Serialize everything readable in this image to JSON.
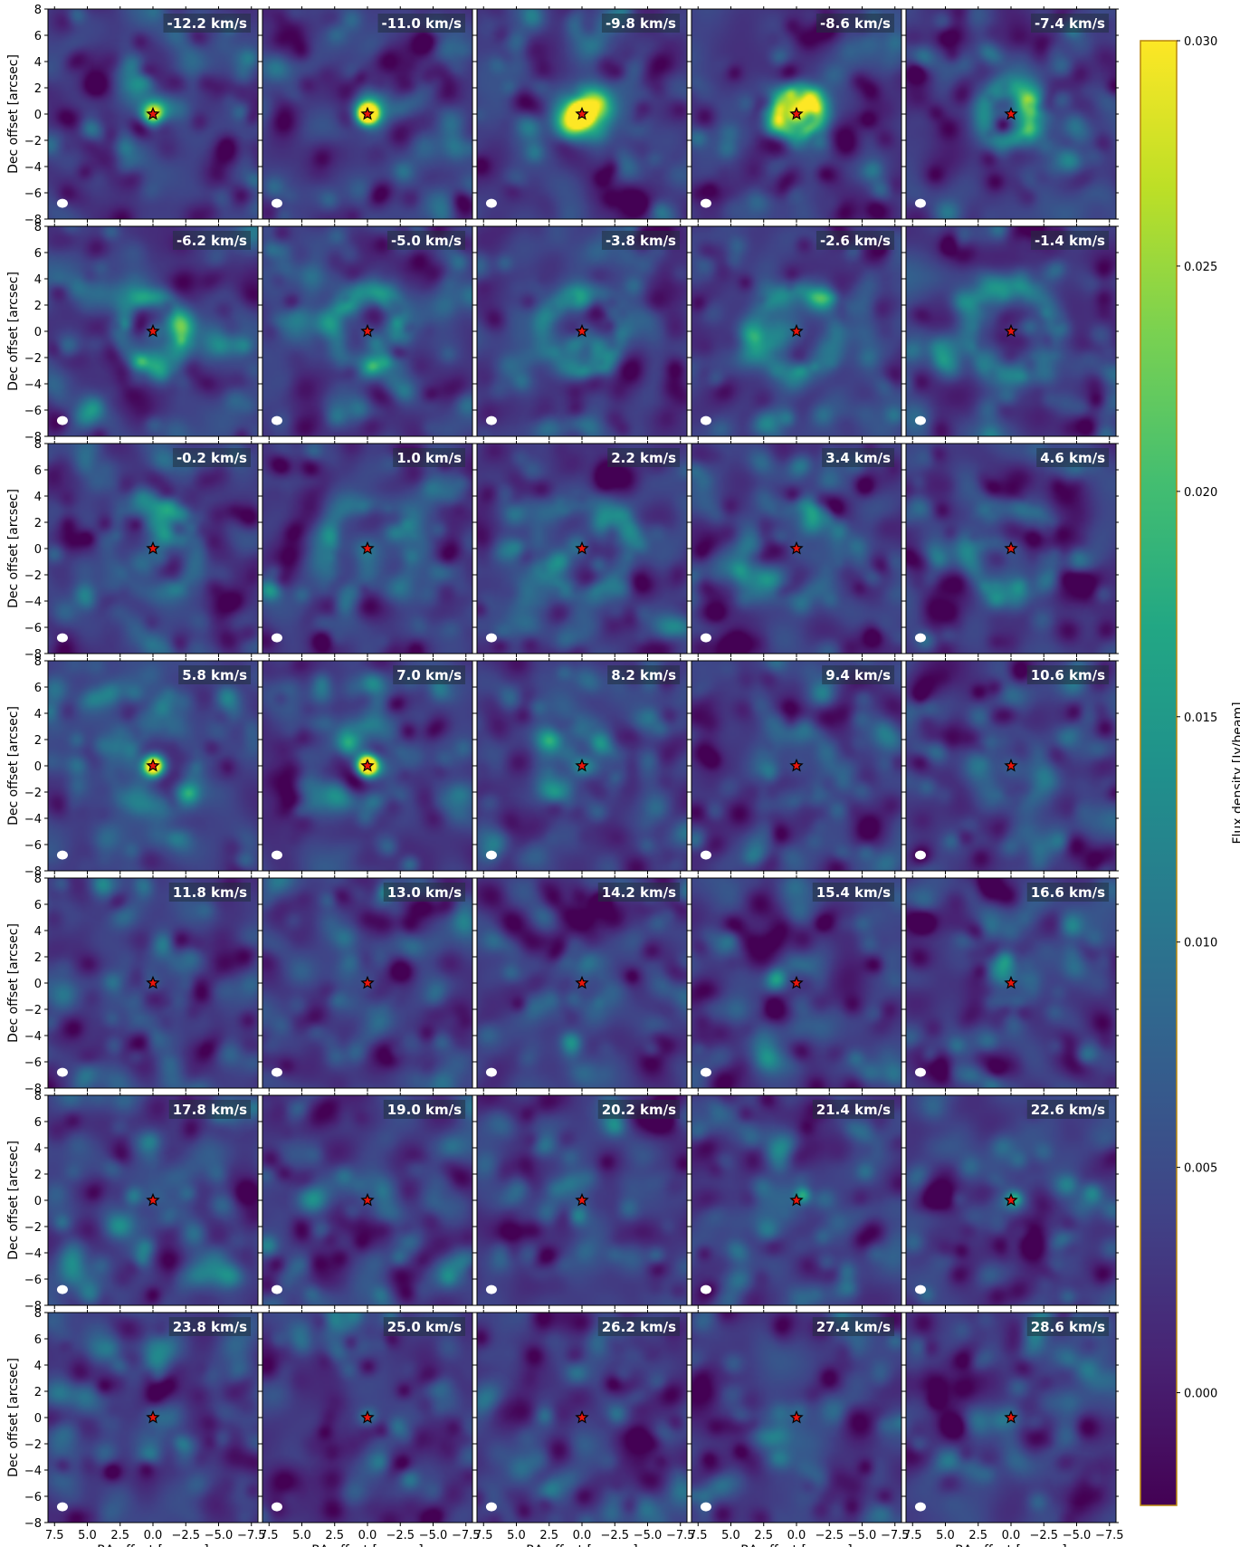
{
  "chart_data": {
    "type": "heatmap",
    "title": "",
    "layout": "channel-map grid",
    "rows": 7,
    "cols": 5,
    "xlabel": "RA offset [arcsec]",
    "ylabel": "Dec offset [arcsec]",
    "xlim": [
      8,
      -8
    ],
    "ylim": [
      -8,
      8
    ],
    "x_ticks": [
      "7.5",
      "5.0",
      "2.5",
      "0.0",
      "−2.5",
      "−5.0",
      "−7.5"
    ],
    "x_tick_values": [
      7.5,
      5.0,
      2.5,
      0.0,
      -2.5,
      -5.0,
      -7.5
    ],
    "y_ticks": [
      "8",
      "6",
      "4",
      "2",
      "0",
      "−2",
      "−4",
      "−6",
      "−8"
    ],
    "y_tick_values": [
      8,
      6,
      4,
      2,
      0,
      -2,
      -4,
      -6,
      -8
    ],
    "channels": [
      {
        "label": "-12.2 km/s",
        "velocity": -12.2,
        "peak": 0.016,
        "ring": 0.0,
        "ring_radius": 2.0,
        "blobs": [
          [
            0.0,
            0.0,
            0.8,
            0.012
          ]
        ]
      },
      {
        "label": "-11.0 km/s",
        "velocity": -11.0,
        "peak": 0.045,
        "ring": 0.002,
        "ring_radius": 1.2,
        "blobs": [
          [
            -0.4,
            0.4,
            1.0,
            0.01
          ]
        ]
      },
      {
        "label": "-9.8 km/s",
        "velocity": -9.8,
        "peak": 0.045,
        "ring": 0.006,
        "ring_radius": 1.4,
        "blobs": [
          [
            -1.0,
            0.6,
            1.0,
            0.02
          ],
          [
            0.8,
            -0.8,
            0.9,
            0.016
          ]
        ]
      },
      {
        "label": "-8.6 km/s",
        "velocity": -8.6,
        "peak": 0.022,
        "ring": 0.02,
        "ring_radius": 1.5,
        "blobs": [
          [
            -1.2,
            0.6,
            0.8,
            0.01
          ]
        ]
      },
      {
        "label": "-7.4 km/s",
        "velocity": -7.4,
        "peak": 0.004,
        "ring": 0.012,
        "ring_radius": 2.0,
        "blobs": [
          [
            -1.3,
            0.6,
            0.7,
            0.016
          ],
          [
            -1.0,
            -1.1,
            0.7,
            0.018
          ]
        ]
      },
      {
        "label": "-6.2 km/s",
        "velocity": -6.2,
        "peak": 0.004,
        "ring": 0.012,
        "ring_radius": 2.4,
        "blobs": [
          [
            -1.8,
            0.5,
            0.7,
            0.01
          ]
        ]
      },
      {
        "label": "-5.0 km/s",
        "velocity": -5.0,
        "peak": 0.003,
        "ring": 0.01,
        "ring_radius": 2.7,
        "blobs": [
          [
            -1.5,
            0.4,
            0.7,
            0.006
          ]
        ]
      },
      {
        "label": "-3.8 km/s",
        "velocity": -3.8,
        "peak": 0.003,
        "ring": 0.011,
        "ring_radius": 2.9,
        "blobs": [
          [
            0.0,
            2.2,
            0.6,
            0.008
          ],
          [
            -1.0,
            -1.2,
            0.6,
            0.008
          ]
        ]
      },
      {
        "label": "-2.6 km/s",
        "velocity": -2.6,
        "peak": 0.002,
        "ring": 0.009,
        "ring_radius": 3.1,
        "blobs": []
      },
      {
        "label": "-1.4 km/s",
        "velocity": -1.4,
        "peak": 0.002,
        "ring": 0.008,
        "ring_radius": 3.3,
        "blobs": []
      },
      {
        "label": "-0.2 km/s",
        "velocity": -0.2,
        "peak": 0.002,
        "ring": 0.007,
        "ring_radius": 3.4,
        "blobs": [
          [
            -1.0,
            1.0,
            0.6,
            0.008
          ]
        ]
      },
      {
        "label": "1.0 km/s",
        "velocity": 1.0,
        "peak": 0.002,
        "ring": 0.006,
        "ring_radius": 3.5,
        "blobs": []
      },
      {
        "label": "2.2 km/s",
        "velocity": 2.2,
        "peak": 0.002,
        "ring": 0.006,
        "ring_radius": 3.5,
        "blobs": [
          [
            -1.5,
            2.0,
            0.6,
            0.006
          ]
        ]
      },
      {
        "label": "3.4 km/s",
        "velocity": 3.4,
        "peak": 0.002,
        "ring": 0.006,
        "ring_radius": 3.4,
        "blobs": [
          [
            2.0,
            -2.0,
            0.6,
            0.006
          ]
        ]
      },
      {
        "label": "4.6 km/s",
        "velocity": 4.6,
        "peak": 0.002,
        "ring": 0.006,
        "ring_radius": 3.3,
        "blobs": []
      },
      {
        "label": "5.8 km/s",
        "velocity": 5.8,
        "peak": 0.04,
        "ring": 0.005,
        "ring_radius": 3.2,
        "blobs": []
      },
      {
        "label": "7.0 km/s",
        "velocity": 7.0,
        "peak": 0.045,
        "ring": 0.005,
        "ring_radius": 3.0,
        "blobs": [
          [
            1.5,
            1.8,
            0.6,
            0.01
          ]
        ]
      },
      {
        "label": "8.2 km/s",
        "velocity": 8.2,
        "peak": 0.008,
        "ring": 0.006,
        "ring_radius": 2.8,
        "blobs": [
          [
            2.5,
            2.0,
            0.6,
            0.01
          ],
          [
            -1.5,
            1.6,
            0.6,
            0.01
          ]
        ]
      },
      {
        "label": "9.4 km/s",
        "velocity": 9.4,
        "peak": 0.002,
        "ring": 0.004,
        "ring_radius": 2.6,
        "blobs": []
      },
      {
        "label": "10.6 km/s",
        "velocity": 10.6,
        "peak": 0.002,
        "ring": 0.004,
        "ring_radius": 2.4,
        "blobs": []
      },
      {
        "label": "11.8 km/s",
        "velocity": 11.8,
        "peak": 0.002,
        "ring": 0.003,
        "ring_radius": 2.2,
        "blobs": []
      },
      {
        "label": "13.0 km/s",
        "velocity": 13.0,
        "peak": 0.002,
        "ring": 0.003,
        "ring_radius": 2.0,
        "blobs": []
      },
      {
        "label": "14.2 km/s",
        "velocity": 14.2,
        "peak": 0.002,
        "ring": 0.003,
        "ring_radius": 1.8,
        "blobs": []
      },
      {
        "label": "15.4 km/s",
        "velocity": 15.4,
        "peak": 0.002,
        "ring": 0.003,
        "ring_radius": 1.6,
        "blobs": [
          [
            1.5,
            0.4,
            0.5,
            0.008
          ]
        ]
      },
      {
        "label": "16.6 km/s",
        "velocity": 16.6,
        "peak": 0.002,
        "ring": 0.003,
        "ring_radius": 1.5,
        "blobs": []
      },
      {
        "label": "17.8 km/s",
        "velocity": 17.8,
        "peak": 0.002,
        "ring": 0.002,
        "ring_radius": 1.4,
        "blobs": [
          [
            1.5,
            0.3,
            0.5,
            0.008
          ]
        ]
      },
      {
        "label": "19.0 km/s",
        "velocity": 19.0,
        "peak": 0.002,
        "ring": 0.002,
        "ring_radius": 1.3,
        "blobs": []
      },
      {
        "label": "20.2 km/s",
        "velocity": 20.2,
        "peak": 0.002,
        "ring": 0.002,
        "ring_radius": 1.2,
        "blobs": [
          [
            0.3,
            -1.2,
            0.5,
            0.008
          ]
        ]
      },
      {
        "label": "21.4 km/s",
        "velocity": 21.4,
        "peak": 0.002,
        "ring": 0.002,
        "ring_radius": 1.1,
        "blobs": [
          [
            -0.5,
            0.4,
            0.4,
            0.012
          ]
        ]
      },
      {
        "label": "22.6 km/s",
        "velocity": 22.6,
        "peak": 0.004,
        "ring": 0.002,
        "ring_radius": 1.0,
        "blobs": [
          [
            -0.3,
            0.1,
            0.4,
            0.01
          ]
        ]
      },
      {
        "label": "23.8 km/s",
        "velocity": 23.8,
        "peak": 0.006,
        "ring": 0.002,
        "ring_radius": 0.9,
        "blobs": []
      },
      {
        "label": "25.0 km/s",
        "velocity": 25.0,
        "peak": 0.01,
        "ring": 0.001,
        "ring_radius": 0.8,
        "blobs": []
      },
      {
        "label": "26.2 km/s",
        "velocity": 26.2,
        "peak": 0.001,
        "ring": 0.0,
        "ring_radius": 0.8,
        "blobs": []
      },
      {
        "label": "27.4 km/s",
        "velocity": 27.4,
        "peak": 0.001,
        "ring": 0.0,
        "ring_radius": 0.8,
        "blobs": []
      },
      {
        "label": "28.6 km/s",
        "velocity": 28.6,
        "peak": 0.001,
        "ring": 0.0,
        "ring_radius": 0.8,
        "blobs": []
      }
    ],
    "colorbar": {
      "label": "Flux density [Jy/beam]",
      "colormap": "viridis",
      "vmin": -0.0025,
      "vmax": 0.03,
      "ticks": [
        "0.000",
        "0.005",
        "0.010",
        "0.015",
        "0.020",
        "0.025",
        "0.030"
      ],
      "tick_values": [
        0.0,
        0.005,
        0.01,
        0.015,
        0.02,
        0.025,
        0.03
      ]
    },
    "markers": {
      "star": "red star with black outline at (0, 0)",
      "beam": "white ellipse, lower-left corner"
    },
    "colors": {
      "star_fill": "#e8160c",
      "star_edge": "#000000",
      "label_box": "#203040",
      "label_text": "#ffffff",
      "colorbar_frame": "#b8860b"
    }
  }
}
